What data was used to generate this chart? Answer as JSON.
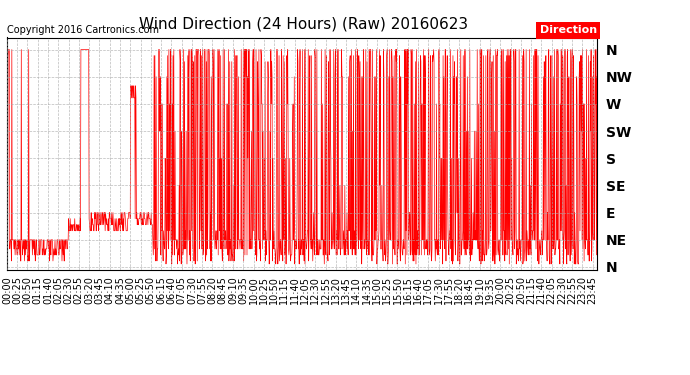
{
  "title": "Wind Direction (24 Hours) (Raw) 20160623",
  "copyright": "Copyright 2016 Cartronics.com",
  "line_color": "#FF0000",
  "background_color": "#FFFFFF",
  "plot_bg_color": "#FFFFFF",
  "grid_color": "#aaaaaa",
  "legend_label": "Direction",
  "legend_bg": "#FF0000",
  "legend_fg": "#FFFFFF",
  "ytick_labels": [
    "N",
    "NW",
    "W",
    "SW",
    "S",
    "SE",
    "E",
    "NE",
    "N"
  ],
  "ytick_values": [
    360,
    315,
    270,
    225,
    180,
    135,
    90,
    45,
    0
  ],
  "ylim": [
    -5,
    380
  ],
  "title_fontsize": 11,
  "copyright_fontsize": 7,
  "tick_fontsize": 7,
  "ytick_fontsize": 10
}
